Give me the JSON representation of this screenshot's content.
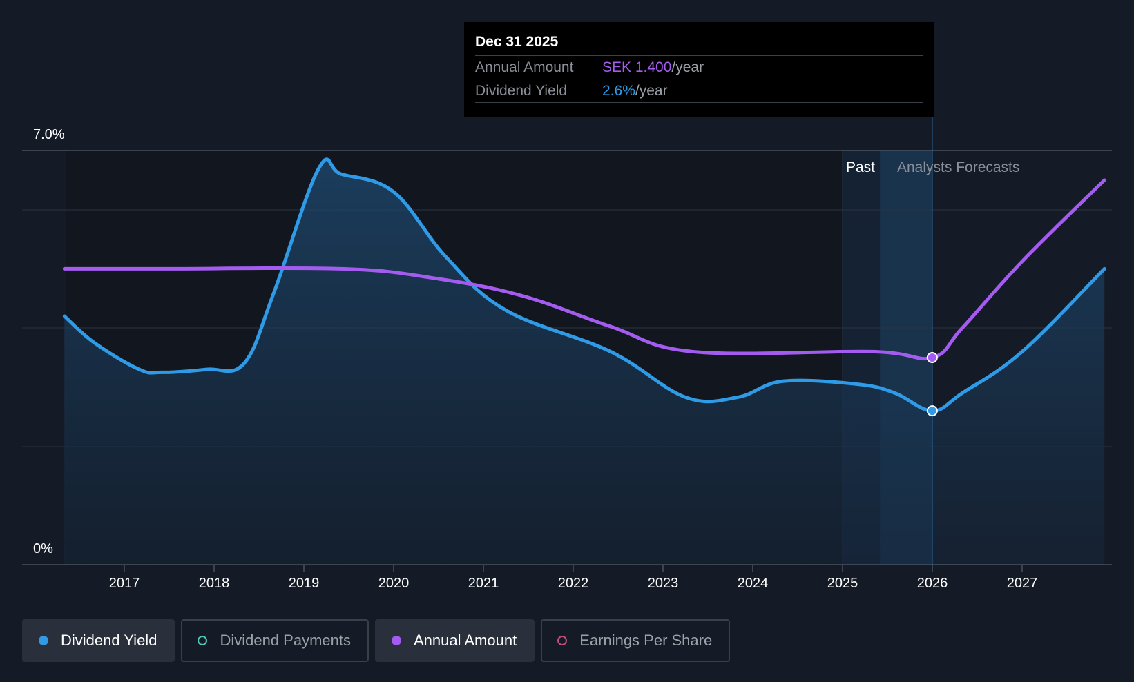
{
  "chart_data": {
    "type": "line",
    "y_max_label": "7.0%",
    "y_min_label": "0%",
    "ylim": [
      0,
      7.0
    ],
    "x_ticks": [
      "2017",
      "2018",
      "2019",
      "2020",
      "2021",
      "2022",
      "2023",
      "2024",
      "2025",
      "2026",
      "2027"
    ],
    "region_labels": {
      "past": "Past",
      "forecast": "Analysts Forecasts"
    },
    "series": [
      {
        "name": "Dividend Yield",
        "color": "#2f9ae6",
        "unit": "%",
        "points": [
          [
            "2016-05",
            4.2
          ],
          [
            "2016-09",
            3.75
          ],
          [
            "2017-03",
            3.3
          ],
          [
            "2017-06",
            3.25
          ],
          [
            "2017-12",
            3.3
          ],
          [
            "2018-05",
            3.4
          ],
          [
            "2018-09",
            4.6
          ],
          [
            "2019-03",
            6.7
          ],
          [
            "2019-06",
            6.6
          ],
          [
            "2020-01",
            6.3
          ],
          [
            "2020-08",
            5.2
          ],
          [
            "2021-04",
            4.3
          ],
          [
            "2022-06",
            3.6
          ],
          [
            "2023-04",
            2.83
          ],
          [
            "2023-11",
            2.83
          ],
          [
            "2024-05",
            3.1
          ],
          [
            "2025-03",
            3.05
          ],
          [
            "2025-08",
            2.9
          ],
          [
            "2025-12-31",
            2.6
          ],
          [
            "2026-05",
            2.9
          ],
          [
            "2027-01",
            3.6
          ],
          [
            "2027-12",
            5.0
          ]
        ]
      },
      {
        "name": "Annual Amount",
        "color": "#a45cf0",
        "unit": "SEK",
        "points": [
          [
            "2016-05",
            2.0
          ],
          [
            "2017-06",
            2.0
          ],
          [
            "2019-06",
            2.0
          ],
          [
            "2020-06",
            1.94
          ],
          [
            "2021-06",
            1.82
          ],
          [
            "2022-06",
            1.61
          ],
          [
            "2023-05",
            1.44
          ],
          [
            "2025-05",
            1.44
          ],
          [
            "2025-12-31",
            1.4
          ],
          [
            "2026-05",
            1.6
          ],
          [
            "2027-01",
            2.05
          ],
          [
            "2027-12",
            2.6
          ]
        ]
      }
    ],
    "tooltip": {
      "date": "Dec 31 2025",
      "rows": [
        {
          "label": "Annual Amount",
          "value": "SEK 1.400",
          "unit": "/year"
        },
        {
          "label": "Dividend Yield",
          "value": "2.6%",
          "unit": "/year"
        }
      ]
    },
    "legend": [
      {
        "label": "Dividend Yield",
        "active": true,
        "style": "filled",
        "color": "#2f9ae6"
      },
      {
        "label": "Dividend Payments",
        "active": false,
        "style": "hollow",
        "color": "#4fc7b8"
      },
      {
        "label": "Annual Amount",
        "active": true,
        "style": "filled",
        "color": "#a45cf0"
      },
      {
        "label": "Earnings Per Share",
        "active": false,
        "style": "hollow",
        "color": "#c0507a"
      }
    ]
  }
}
